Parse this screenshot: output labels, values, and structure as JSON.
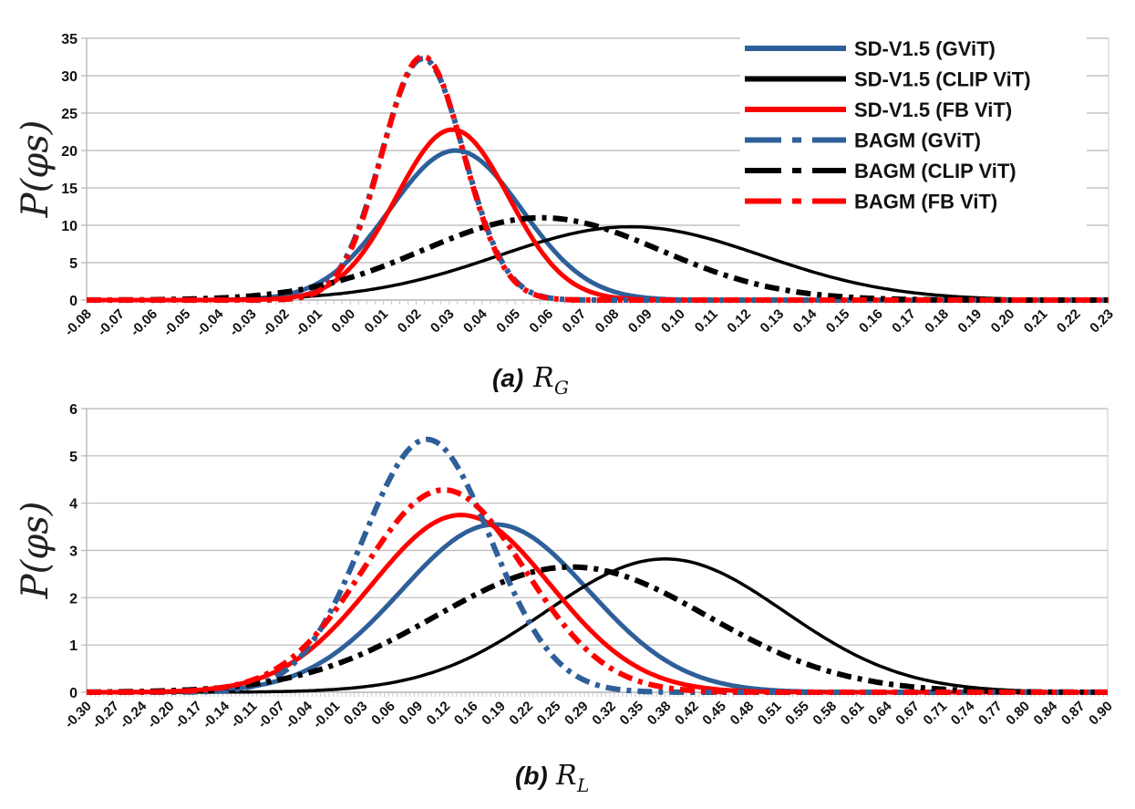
{
  "colors": {
    "blue": "#2e5f99",
    "black": "#000000",
    "red": "#ff0000",
    "grid": "#b8b8b8"
  },
  "legend": {
    "position": "top-right",
    "entries": [
      {
        "label": "SD-V1.5 (GViT)",
        "color": "#2e5f99",
        "style": "solid"
      },
      {
        "label": "SD-V1.5 (CLIP ViT)",
        "color": "#000000",
        "style": "solid"
      },
      {
        "label": "SD-V1.5 (FB ViT)",
        "color": "#ff0000",
        "style": "solid"
      },
      {
        "label": "BAGM (GViT)",
        "color": "#2e5f99",
        "style": "dashdot"
      },
      {
        "label": "BAGM (CLIP ViT)",
        "color": "#000000",
        "style": "dashdot"
      },
      {
        "label": "BAGM (FB ViT)",
        "color": "#ff0000",
        "style": "dashdot"
      }
    ]
  },
  "chart_data": [
    {
      "type": "line",
      "title": "(a) R_G",
      "caption_prefix": "(a)",
      "caption_symbol": "R",
      "caption_sub": "G",
      "ylabel": "P(φs)",
      "xlim": [
        -0.08,
        0.23
      ],
      "ylim": [
        0,
        35
      ],
      "grid": true,
      "yticks": [
        "0",
        "5",
        "10",
        "15",
        "20",
        "25",
        "30",
        "35"
      ],
      "xticks": [
        "-0.08",
        "-0.07",
        "-0.06",
        "-0.05",
        "-0.04",
        "-0.03",
        "-0.02",
        "-0.01",
        "0.00",
        "0.01",
        "0.02",
        "0.03",
        "0.04",
        "0.05",
        "0.06",
        "0.07",
        "0.08",
        "0.09",
        "0.10",
        "0.11",
        "0.12",
        "0.13",
        "0.14",
        "0.15",
        "0.16",
        "0.17",
        "0.18",
        "0.19",
        "0.20",
        "0.21",
        "0.22",
        "0.23"
      ],
      "series": [
        {
          "name": "SD-V1.5 (GViT)",
          "peak_x": 0.032,
          "peak_y": 20.0,
          "sigma": 0.02
        },
        {
          "name": "SD-V1.5 (CLIP ViT)",
          "peak_x": 0.085,
          "peak_y": 9.8,
          "sigma": 0.04
        },
        {
          "name": "SD-V1.5 (FB ViT)",
          "peak_x": 0.031,
          "peak_y": 22.8,
          "sigma": 0.017
        },
        {
          "name": "BAGM (GViT)",
          "peak_x": 0.022,
          "peak_y": 32.3,
          "sigma": 0.0125
        },
        {
          "name": "BAGM (CLIP ViT)",
          "peak_x": 0.058,
          "peak_y": 11.0,
          "sigma": 0.036
        },
        {
          "name": "BAGM (FB ViT)",
          "peak_x": 0.022,
          "peak_y": 32.6,
          "sigma": 0.0123
        }
      ]
    },
    {
      "type": "line",
      "title": "(b) R_L",
      "caption_prefix": "(b)",
      "caption_symbol": "R",
      "caption_sub": "L",
      "ylabel": "P(φs)",
      "xlim": [
        -0.3,
        0.9
      ],
      "ylim": [
        0,
        6
      ],
      "grid": true,
      "yticks": [
        "0",
        "1",
        "2",
        "3",
        "4",
        "5",
        "6"
      ],
      "xticks": [
        "-0.30",
        "-0.27",
        "-0.24",
        "-0.20",
        "-0.17",
        "-0.14",
        "-0.11",
        "-0.07",
        "-0.04",
        "-0.01",
        "0.03",
        "0.06",
        "0.09",
        "0.12",
        "0.16",
        "0.19",
        "0.22",
        "0.25",
        "0.29",
        "0.32",
        "0.35",
        "0.38",
        "0.42",
        "0.45",
        "0.48",
        "0.51",
        "0.55",
        "0.58",
        "0.61",
        "0.64",
        "0.67",
        "0.71",
        "0.74",
        "0.77",
        "0.80",
        "0.84",
        "0.87",
        "0.90"
      ],
      "series": [
        {
          "name": "SD-V1.5 (GViT)",
          "peak_x": 0.18,
          "peak_y": 3.55,
          "sigma": 0.11
        },
        {
          "name": "SD-V1.5 (CLIP ViT)",
          "peak_x": 0.38,
          "peak_y": 2.82,
          "sigma": 0.14
        },
        {
          "name": "SD-V1.5 (FB ViT)",
          "peak_x": 0.14,
          "peak_y": 3.75,
          "sigma": 0.105
        },
        {
          "name": "BAGM (GViT)",
          "peak_x": 0.1,
          "peak_y": 5.35,
          "sigma": 0.075
        },
        {
          "name": "BAGM (CLIP ViT)",
          "peak_x": 0.27,
          "peak_y": 2.65,
          "sigma": 0.16
        },
        {
          "name": "BAGM (FB ViT)",
          "peak_x": 0.12,
          "peak_y": 4.28,
          "sigma": 0.095
        }
      ]
    }
  ]
}
